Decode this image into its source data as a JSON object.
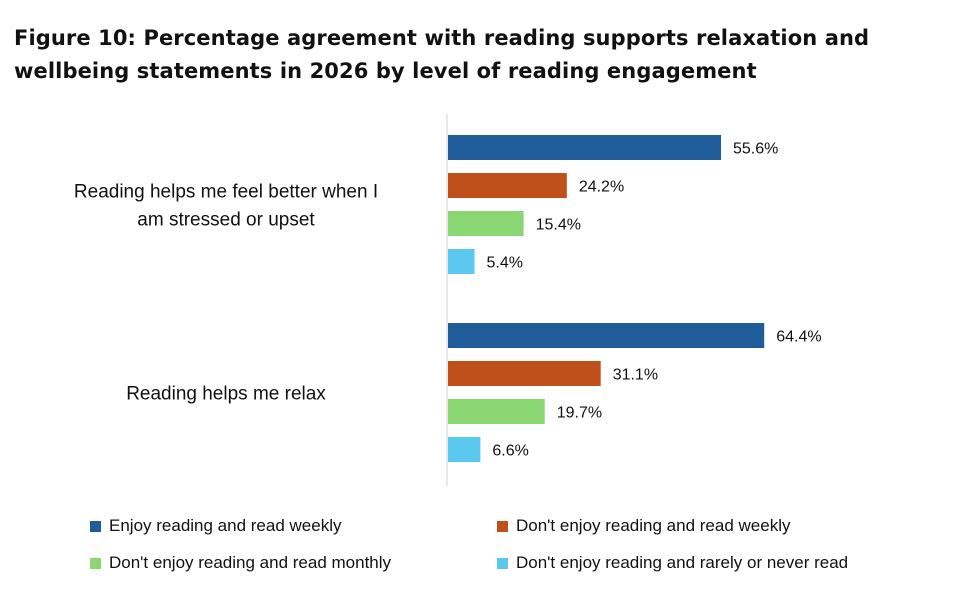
{
  "chart_data": {
    "type": "bar",
    "orientation": "horizontal",
    "title": "Figure 10: Percentage agreement with reading supports relaxation and wellbeing statements in 2026 by level of reading engagement",
    "categories": [
      "Reading helps me feel better when I am stressed or upset",
      "Reading helps me relax"
    ],
    "series": [
      {
        "name": "Enjoy reading and read weekly",
        "color": "#1f5c99",
        "values": [
          55.6,
          64.4
        ],
        "labels": [
          "55.6%",
          "64.4%"
        ]
      },
      {
        "name": "Don't enjoy reading and read weekly",
        "color": "#c0501a",
        "values": [
          24.2,
          31.1
        ],
        "labels": [
          "24.2%",
          "31.1%"
        ]
      },
      {
        "name": "Don't enjoy reading and read monthly",
        "color": "#8ad672",
        "values": [
          15.4,
          19.7
        ],
        "labels": [
          "15.4%",
          "19.7%"
        ]
      },
      {
        "name": "Don't enjoy reading and rarely or never read",
        "color": "#5bc8f0",
        "values": [
          5.4,
          6.6
        ],
        "labels": [
          "5.4%",
          "6.6%"
        ]
      }
    ],
    "xlim": [
      0,
      100
    ],
    "legend_position": "bottom",
    "grid": false
  }
}
